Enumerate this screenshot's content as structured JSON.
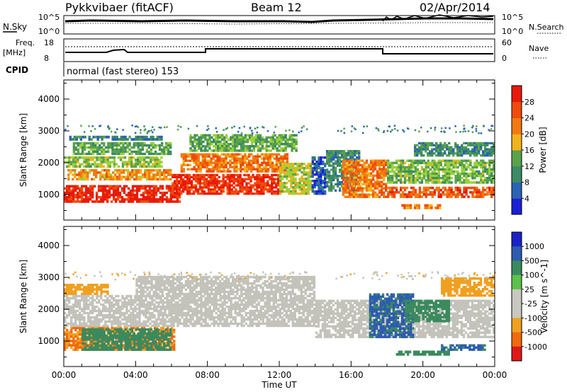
{
  "header": {
    "radar": "Pykkvibaer (fitACF)",
    "beam": "Beam 12",
    "date": "02/Apr/2014"
  },
  "noise_panel": {
    "left_label": "N.Sky",
    "right_label": "N.Search",
    "left_ticks": [
      "10^5",
      "10^0"
    ],
    "right_ticks": [
      "10^5",
      "10^0"
    ]
  },
  "freq_panel": {
    "left_label_1": "Freq.",
    "left_label_2": "[MHz]",
    "right_label": "Nave",
    "left_ticks": [
      "18",
      "8"
    ],
    "right_ticks": [
      "60",
      "0"
    ]
  },
  "cpid": {
    "label": "CPID",
    "text": "normal (fast stereo) 153"
  },
  "colors": {
    "power_scale": [
      "#1b1fd6",
      "#2a63b5",
      "#3c8a66",
      "#5aa24a",
      "#9bd13a",
      "#f2b21a",
      "#f07a10",
      "#f04a0a",
      "#e81a0a"
    ],
    "velocity_scale": [
      "#1a22c8",
      "#2d5cb0",
      "#3a8a5e",
      "#5cc24a",
      "#c8c8c0",
      "#c8c8c0",
      "#f0a020",
      "#f06a10",
      "#e01818"
    ],
    "ground_scatter": "#c3c3bb"
  },
  "chart_data": [
    {
      "type": "heatmap",
      "panel": "power",
      "xlabel": "Time UT",
      "ylabel": "Slant Range [km]",
      "colorbar_label": "Power [dB]",
      "colorbar_ticks": [
        "4",
        "8",
        "12",
        "16",
        "20",
        "24",
        "28"
      ],
      "x_ticks": [
        "00:00",
        "04:00",
        "08:00",
        "12:00",
        "16:00",
        "20:00",
        "00:00"
      ],
      "y_ticks": [
        "1000",
        "2000",
        "3000",
        "4000"
      ],
      "xlim": [
        0,
        24
      ],
      "ylim": [
        200,
        4600
      ],
      "regions": [
        {
          "t0": 0.0,
          "t1": 6.5,
          "r0": 750,
          "r1": 1300,
          "db": 28
        },
        {
          "t0": 0.2,
          "t1": 6.0,
          "r0": 1450,
          "r1": 1800,
          "db": 20
        },
        {
          "t0": 0.0,
          "t1": 5.5,
          "r0": 1850,
          "r1": 2200,
          "db": 14
        },
        {
          "t0": 0.5,
          "t1": 6.0,
          "r0": 2250,
          "r1": 2650,
          "db": 11
        },
        {
          "t0": 0.3,
          "t1": 5.5,
          "r0": 2700,
          "r1": 2850,
          "db": 8
        },
        {
          "t0": 6.0,
          "t1": 12.0,
          "r0": 1000,
          "r1": 1650,
          "db": 27
        },
        {
          "t0": 6.5,
          "t1": 12.5,
          "r0": 1700,
          "r1": 2300,
          "db": 22
        },
        {
          "t0": 7.0,
          "t1": 13.0,
          "r0": 2350,
          "r1": 2900,
          "db": 12
        },
        {
          "t0": 12.0,
          "t1": 13.8,
          "r0": 1000,
          "r1": 2000,
          "db": 16
        },
        {
          "t0": 13.8,
          "t1": 14.6,
          "r0": 1000,
          "r1": 2200,
          "db": 4
        },
        {
          "t0": 14.6,
          "t1": 16.5,
          "r0": 1100,
          "r1": 2400,
          "db": 9
        },
        {
          "t0": 15.5,
          "t1": 18.0,
          "r0": 900,
          "r1": 2100,
          "db": 22
        },
        {
          "t0": 18.0,
          "t1": 24.0,
          "r0": 900,
          "r1": 1250,
          "db": 24
        },
        {
          "t0": 18.0,
          "t1": 24.0,
          "r0": 1350,
          "r1": 2100,
          "db": 13
        },
        {
          "t0": 19.5,
          "t1": 24.0,
          "r0": 2200,
          "r1": 2650,
          "db": 9
        },
        {
          "t0": 18.8,
          "t1": 21.0,
          "r0": 550,
          "r1": 700,
          "db": 22
        }
      ]
    },
    {
      "type": "heatmap",
      "panel": "velocity",
      "xlabel": "Time UT",
      "ylabel": "Slant Range [km]",
      "colorbar_label": "Velocity [m s^-1]",
      "colorbar_ticks": [
        "1000",
        "500",
        "100",
        "25",
        "-25",
        "-100",
        "-500",
        "-1000"
      ],
      "x_ticks": [
        "00:00",
        "04:00",
        "08:00",
        "12:00",
        "16:00",
        "20:00",
        "00:00"
      ],
      "y_ticks": [
        "1000",
        "2000",
        "3000",
        "4000"
      ],
      "xlim": [
        0,
        24
      ],
      "ylim": [
        200,
        4600
      ],
      "regions": [
        {
          "t0": 0.0,
          "t1": 6.2,
          "r0": 700,
          "r1": 1450,
          "vel": -300
        },
        {
          "t0": 1.0,
          "t1": 6.0,
          "r0": 700,
          "r1": 1400,
          "vel": 120
        },
        {
          "t0": 0.0,
          "t1": 2.5,
          "r0": 2450,
          "r1": 2800,
          "vel": -200
        },
        {
          "t0": 0.0,
          "t1": 14.0,
          "r0": 1450,
          "r1": 2450,
          "vel": 0
        },
        {
          "t0": 4.0,
          "t1": 14.0,
          "r0": 2450,
          "r1": 3050,
          "vel": 0
        },
        {
          "t0": 14.0,
          "t1": 24.0,
          "r0": 1100,
          "r1": 2300,
          "vel": 0
        },
        {
          "t0": 17.0,
          "t1": 19.5,
          "r0": 1100,
          "r1": 2500,
          "vel": 400
        },
        {
          "t0": 19.0,
          "t1": 21.5,
          "r0": 1600,
          "r1": 2300,
          "vel": 150
        },
        {
          "t0": 21.0,
          "t1": 24.0,
          "r0": 2400,
          "r1": 3000,
          "vel": -200
        },
        {
          "t0": 18.5,
          "t1": 21.5,
          "r0": 550,
          "r1": 700,
          "vel": 150
        },
        {
          "t0": 21.0,
          "t1": 23.5,
          "r0": 700,
          "r1": 900,
          "vel": 400
        }
      ]
    }
  ]
}
